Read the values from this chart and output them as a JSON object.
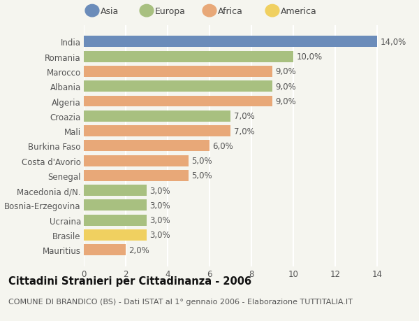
{
  "categories": [
    "India",
    "Romania",
    "Marocco",
    "Albania",
    "Algeria",
    "Croazia",
    "Mali",
    "Burkina Faso",
    "Costa d'Avorio",
    "Senegal",
    "Macedonia d/N.",
    "Bosnia-Erzegovina",
    "Ucraina",
    "Brasile",
    "Mauritius"
  ],
  "values": [
    14.0,
    10.0,
    9.0,
    9.0,
    9.0,
    7.0,
    7.0,
    6.0,
    5.0,
    5.0,
    3.0,
    3.0,
    3.0,
    3.0,
    2.0
  ],
  "continents": [
    "Asia",
    "Europa",
    "Africa",
    "Europa",
    "Africa",
    "Europa",
    "Africa",
    "Africa",
    "Africa",
    "Africa",
    "Europa",
    "Europa",
    "Europa",
    "America",
    "Africa"
  ],
  "continent_colors": {
    "Asia": "#6b8cba",
    "Europa": "#a8c080",
    "Africa": "#e8a878",
    "America": "#f0d060"
  },
  "legend_order": [
    "Asia",
    "Europa",
    "Africa",
    "America"
  ],
  "xlim_max": 14,
  "xticks": [
    0,
    2,
    4,
    6,
    8,
    10,
    12,
    14
  ],
  "title": "Cittadini Stranieri per Cittadinanza - 2006",
  "subtitle": "COMUNE DI BRANDICO (BS) - Dati ISTAT al 1° gennaio 2006 - Elaborazione TUTTITALIA.IT",
  "background_color": "#f5f5ef",
  "bar_height": 0.75,
  "label_fontsize": 8.5,
  "tick_fontsize": 8.5,
  "title_fontsize": 10.5,
  "subtitle_fontsize": 8,
  "legend_fontsize": 9
}
